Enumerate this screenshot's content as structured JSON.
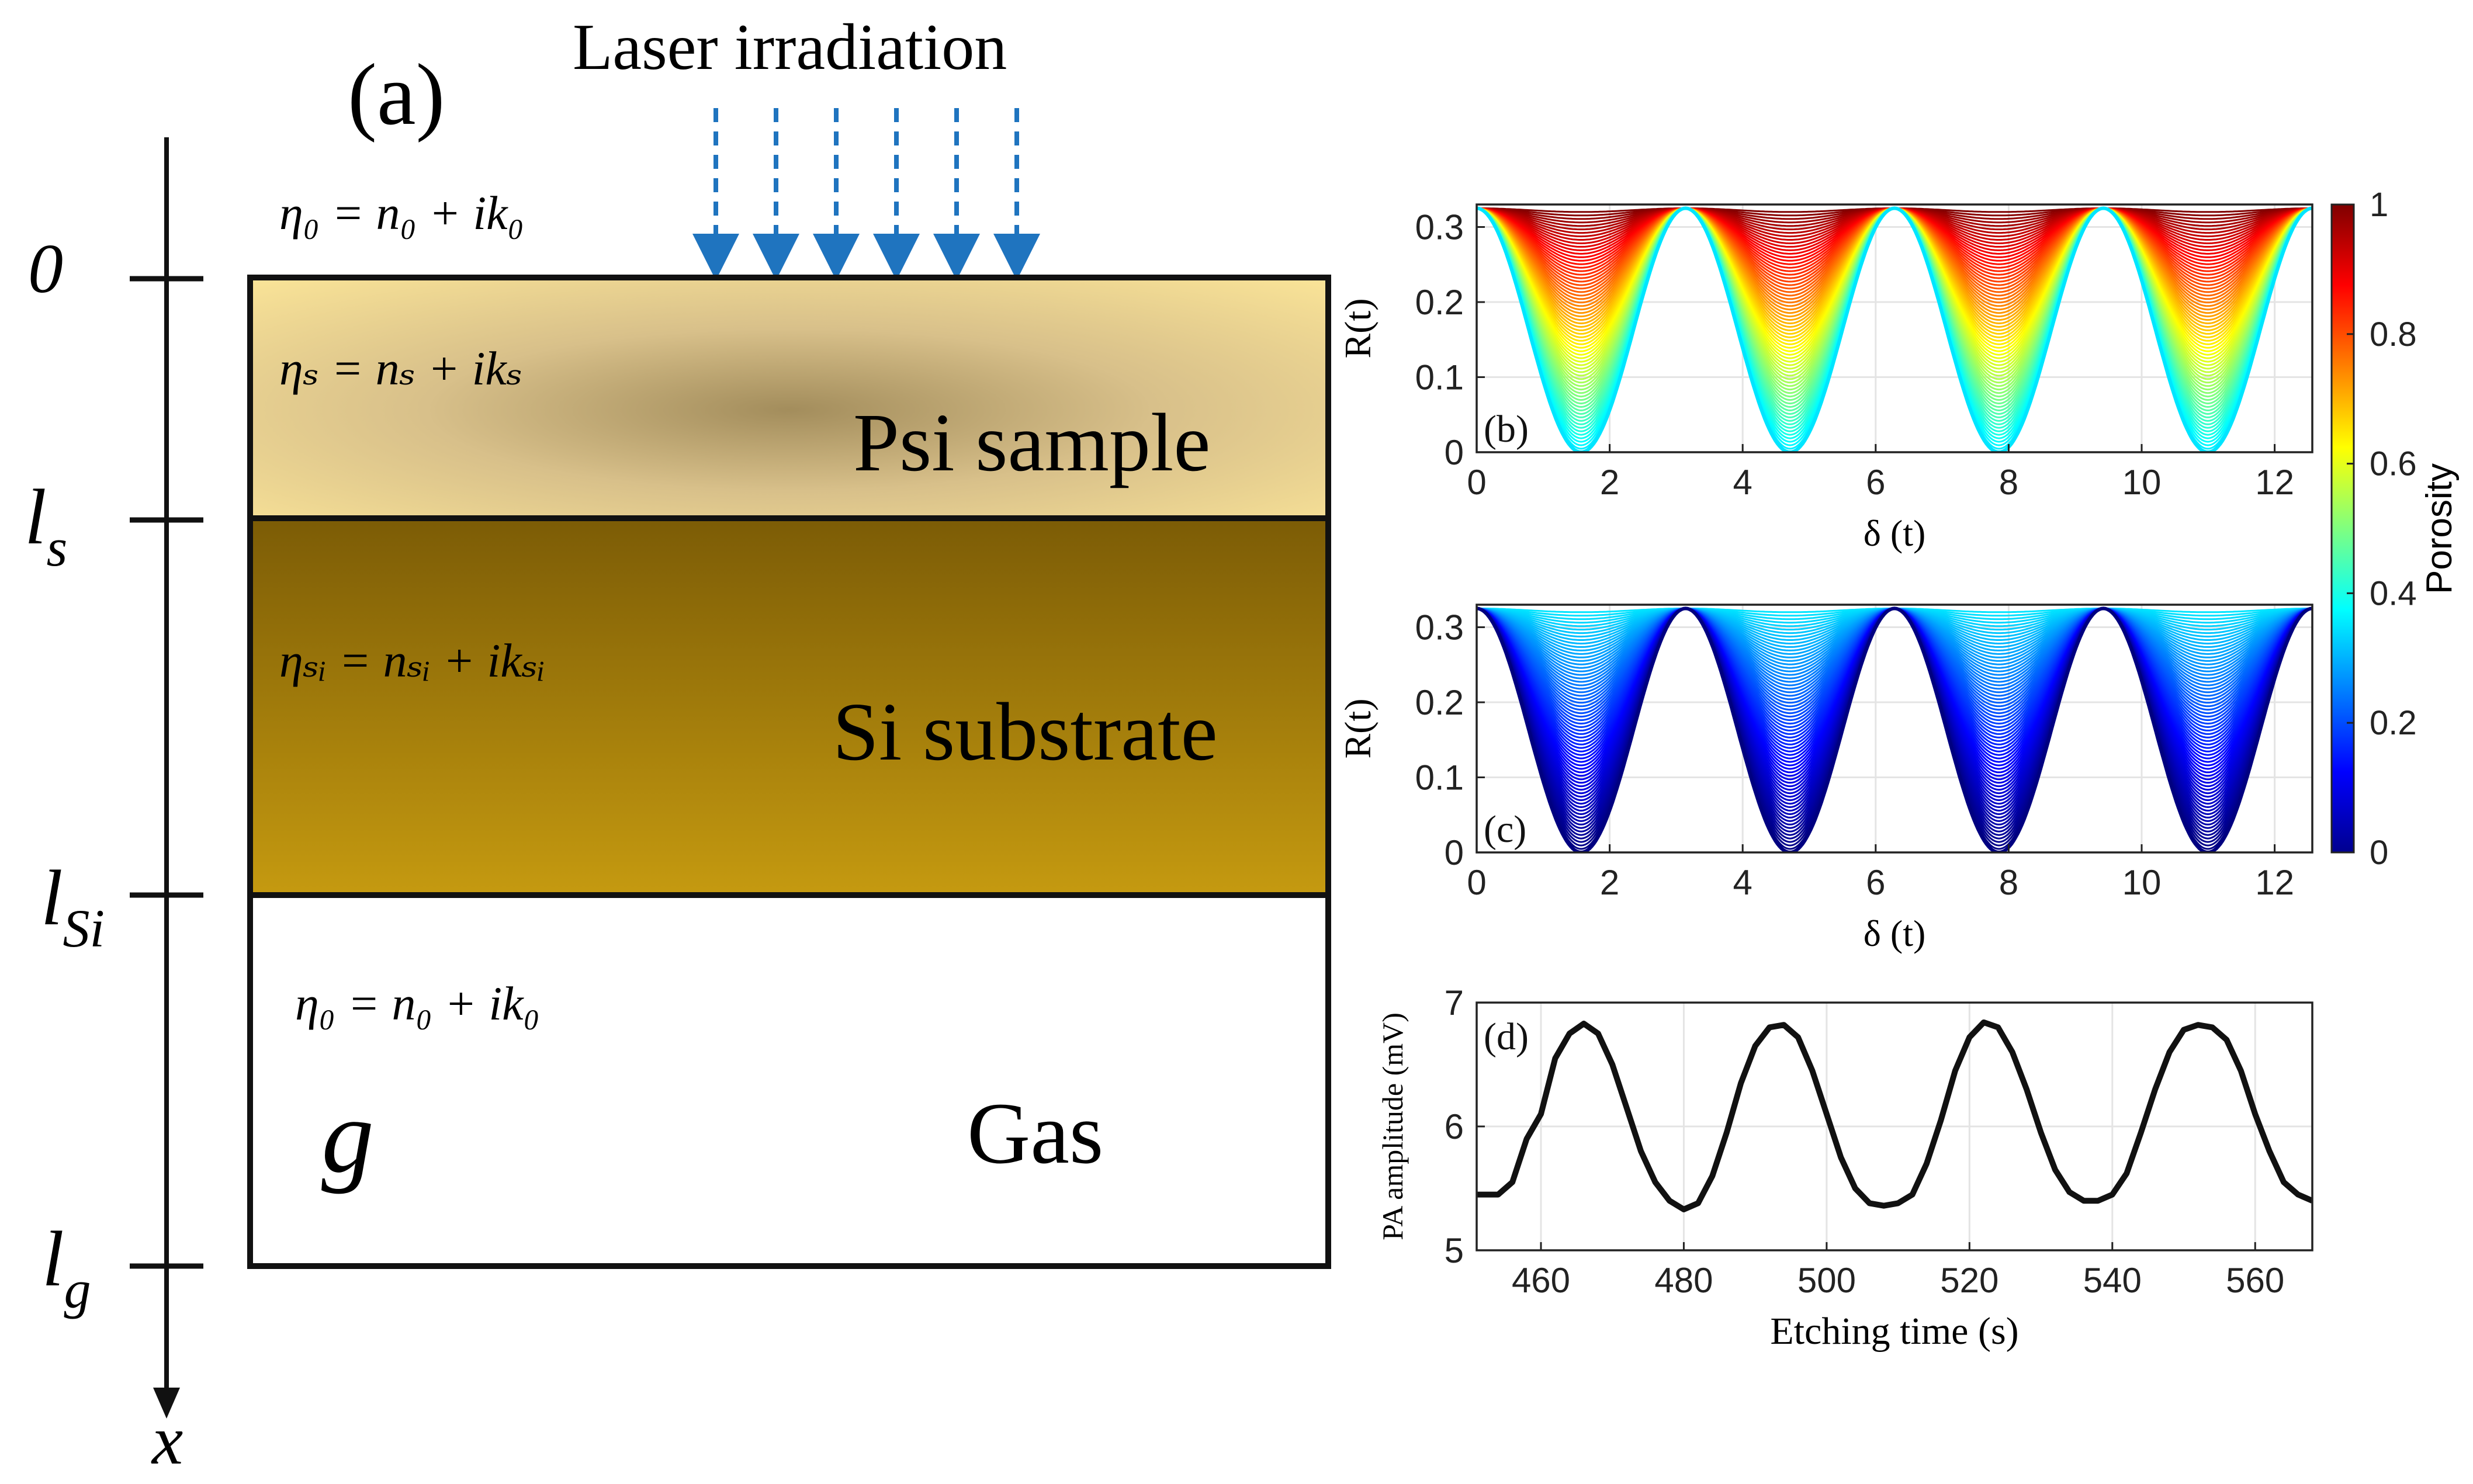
{
  "figure": {
    "panel_a": {
      "label": "(a)",
      "laser_label": "Laser irradiation",
      "eta_top": "η₀ = n₀ + ik₀",
      "eta_sample": "ηₛ = nₛ + ikₛ",
      "eta_si": "ηₛᵢ = nₛᵢ + ikₛᵢ",
      "eta_gas": "η₀ = n₀ + ik₀",
      "layer_sample": "Psi sample",
      "layer_substrate": "Si substrate",
      "layer_gas": "Gas",
      "gas_symbol": "g",
      "axis_var": "x",
      "ticks": {
        "zero": "0",
        "ls_main": "l",
        "ls_sub": "s",
        "lsi_main": "l",
        "lsi_sub": "Si",
        "lg_main": "l",
        "lg_sub": "g"
      }
    },
    "colorbar": {
      "label": "Porosity",
      "ticks": [
        "0",
        "0.2",
        "0.4",
        "0.6",
        "0.8",
        "1"
      ]
    }
  },
  "chart_data": [
    {
      "panel": "(b)",
      "type": "line",
      "title": "",
      "xlabel": "δ (t)",
      "ylabel": "R(t)",
      "xlim": [
        0,
        12.566
      ],
      "ylim": [
        0,
        0.33
      ],
      "xticks": [
        "0",
        "2",
        "4",
        "6",
        "8",
        "10",
        "12"
      ],
      "yticks": [
        "0",
        "0.1",
        "0.2",
        "0.3"
      ],
      "model": "R = Rmax - (Rmax - Rmin)·sin²(δ), family of curves colored by porosity",
      "Rmax": 0.325,
      "Rmin_range": [
        0.0,
        0.32
      ],
      "porosity_range": [
        0.35,
        1.0
      ],
      "colormap": "jet"
    },
    {
      "panel": "(c)",
      "type": "line",
      "title": "",
      "xlabel": "δ (t)",
      "ylabel": "R(t)",
      "xlim": [
        0,
        12.566
      ],
      "ylim": [
        0,
        0.33
      ],
      "xticks": [
        "0",
        "2",
        "4",
        "6",
        "8",
        "10",
        "12"
      ],
      "yticks": [
        "0",
        "0.1",
        "0.2",
        "0.3"
      ],
      "model": "R = Rmax - (Rmax - Rmin)·sin²(δ), family of curves colored by porosity",
      "Rmax": 0.325,
      "Rmin_range": [
        0.0,
        0.32
      ],
      "porosity_range": [
        0.0,
        0.35
      ],
      "colormap": "jet"
    },
    {
      "panel": "(d)",
      "type": "line",
      "title": "",
      "xlabel": "Etching time (s)",
      "ylabel": "PA amplitude (mV)",
      "xlim": [
        451,
        568
      ],
      "ylim": [
        5,
        7
      ],
      "xticks": [
        "460",
        "480",
        "500",
        "520",
        "540",
        "560"
      ],
      "yticks": [
        "5",
        "6",
        "7"
      ],
      "series": [
        {
          "name": "PA amplitude",
          "x": [
            451,
            454,
            456,
            458,
            460,
            462,
            464,
            466,
            468,
            470,
            472,
            474,
            476,
            478,
            480,
            482,
            484,
            486,
            488,
            490,
            492,
            494,
            496,
            498,
            500,
            502,
            504,
            506,
            508,
            510,
            512,
            514,
            516,
            518,
            520,
            522,
            524,
            526,
            528,
            530,
            532,
            534,
            536,
            538,
            540,
            542,
            544,
            546,
            548,
            550,
            552,
            554,
            556,
            558,
            560,
            562,
            564,
            566,
            568
          ],
          "y": [
            5.45,
            5.45,
            5.55,
            5.9,
            6.1,
            6.55,
            6.75,
            6.83,
            6.75,
            6.5,
            6.15,
            5.8,
            5.55,
            5.4,
            5.33,
            5.38,
            5.6,
            5.95,
            6.35,
            6.65,
            6.8,
            6.82,
            6.72,
            6.45,
            6.1,
            5.75,
            5.5,
            5.38,
            5.36,
            5.38,
            5.45,
            5.7,
            6.05,
            6.45,
            6.72,
            6.84,
            6.8,
            6.6,
            6.3,
            5.95,
            5.65,
            5.47,
            5.4,
            5.4,
            5.45,
            5.62,
            5.95,
            6.3,
            6.6,
            6.78,
            6.82,
            6.8,
            6.7,
            6.45,
            6.1,
            5.8,
            5.55,
            5.45,
            5.4
          ]
        }
      ]
    }
  ]
}
